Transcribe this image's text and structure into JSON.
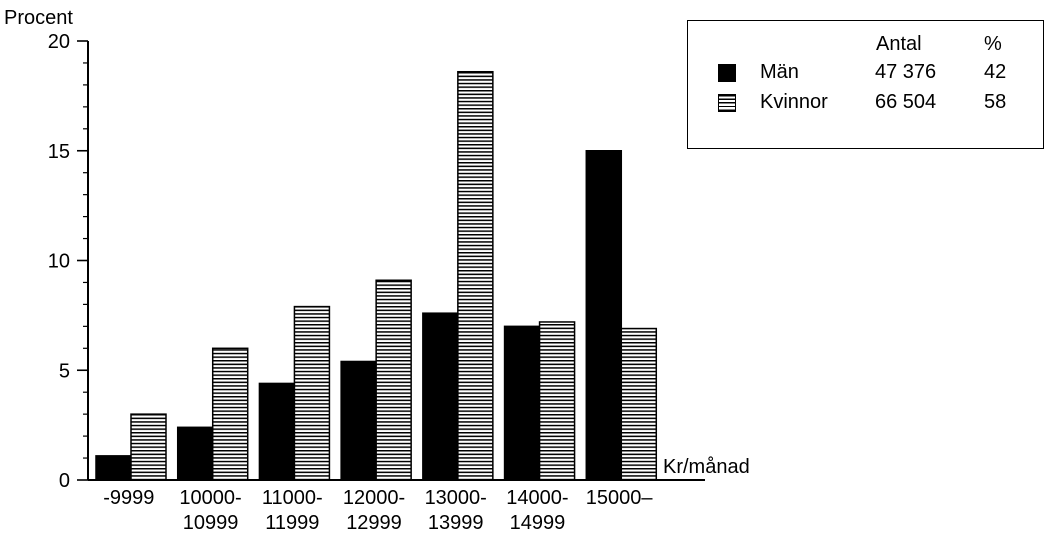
{
  "chart_data": {
    "type": "bar",
    "ylabel": "Procent",
    "xlabel": "Kr/månad",
    "ylim": [
      0,
      20
    ],
    "yticks": [
      0,
      5,
      10,
      15,
      20
    ],
    "categories": [
      "-9999",
      "10000-\n10999",
      "11000-\n11999",
      "12000-\n12999",
      "13000-\n13999",
      "14000-\n14999",
      "15000–"
    ],
    "series": [
      {
        "name": "Män",
        "pattern": "solid",
        "values": [
          1.1,
          2.4,
          4.4,
          5.4,
          7.6,
          7.0,
          15.0
        ]
      },
      {
        "name": "Kvinnor",
        "pattern": "horizontal-stripes",
        "values": [
          3.0,
          6.0,
          7.9,
          9.1,
          18.6,
          7.2,
          6.9
        ]
      }
    ],
    "grid": false,
    "legend_position": "top-right"
  },
  "legend": {
    "header_antal": "Antal",
    "header_pct": "%",
    "rows": [
      {
        "label": "Män",
        "antal": "47 376",
        "pct": "42"
      },
      {
        "label": "Kvinnor",
        "antal": "66 504",
        "pct": "58"
      }
    ]
  },
  "colors": {
    "ink": "#000000",
    "paper": "#ffffff"
  }
}
